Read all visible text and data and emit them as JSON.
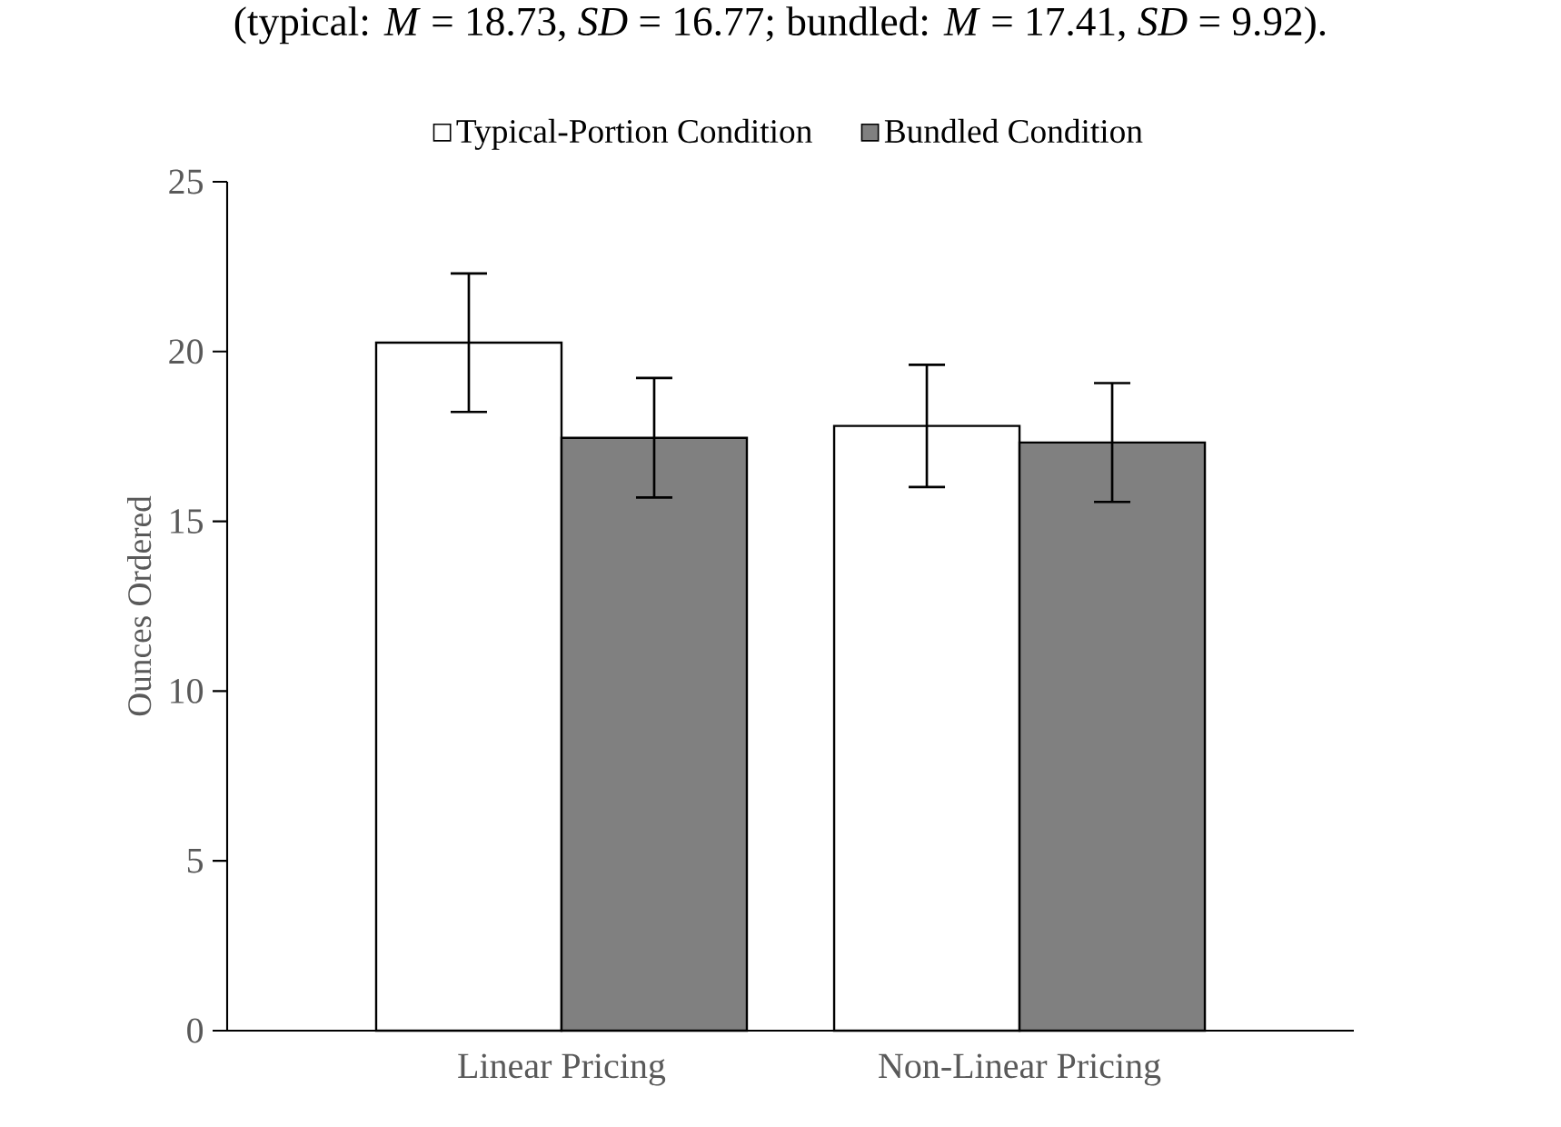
{
  "chart_data": {
    "type": "bar",
    "annotations": [
      "(typical: *M* = 18.73, *SD* = 16.77; bundled: *M* = 17.41, *SD* = 9.92)."
    ],
    "ylabel": "Ounces Ordered",
    "categories": [
      "Linear Pricing",
      "Non-Linear Pricing"
    ],
    "series": [
      {
        "name": "Typical-Portion Condition",
        "color": "#ffffff",
        "values": [
          20.26,
          17.81
        ],
        "errors": [
          2.04,
          1.8
        ]
      },
      {
        "name": "Bundled Condition",
        "color": "#808080",
        "values": [
          17.46,
          17.32
        ],
        "errors": [
          1.76,
          1.75
        ]
      }
    ],
    "ylim": [
      0,
      25
    ],
    "yticks": [
      0,
      5,
      10,
      15,
      20,
      25
    ],
    "legend": "top"
  }
}
